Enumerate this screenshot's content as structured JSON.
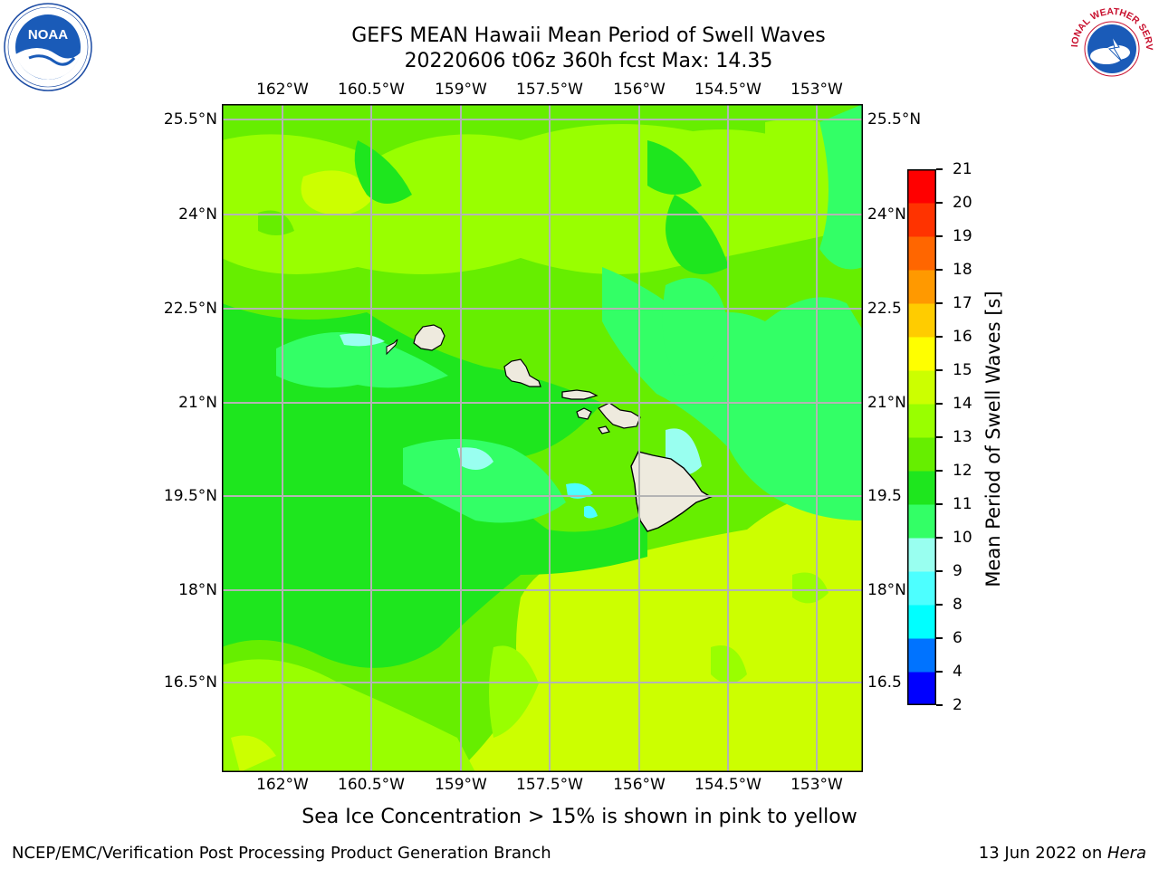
{
  "header": {
    "title_line1": "GEFS MEAN Hawaii Mean Period of Swell Waves",
    "title_line2": "20220606 t06z 360h fcst   Max: 14.35"
  },
  "logos": {
    "noaa": {
      "icon": "noaa-logo",
      "text": "NOAA"
    },
    "nws": {
      "icon": "nws-logo",
      "text": "NATIONAL WEATHER SERVICE"
    }
  },
  "map": {
    "longitude_labels": [
      "162°W",
      "160.5°W",
      "159°W",
      "157.5°W",
      "156°W",
      "154.5°W",
      "153°W"
    ],
    "latitude_labels": [
      "25.5°N",
      "24°N",
      "22.5°N",
      "21°N",
      "19.5°N",
      "18°N",
      "16.5°N"
    ],
    "latitude_labels_right": [
      "25.5°N",
      "24°N",
      "22.5",
      "21°N",
      "19.5",
      "18°N",
      "16.5"
    ],
    "lon_range": [
      -163,
      -152.2
    ],
    "lat_range": [
      15,
      25.8
    ],
    "islands": [
      "Kauai",
      "Niihau",
      "Oahu",
      "Molokai",
      "Maui",
      "Lanai",
      "Kahoolawe",
      "Hawaii"
    ],
    "colors": {
      "land": "#eeeade",
      "grid": "#b4b4b4"
    }
  },
  "colorbar": {
    "label": "Mean Period of Swell Waves [s]",
    "ticks": [
      "2",
      "4",
      "6",
      "8",
      "9",
      "10",
      "11",
      "12",
      "13",
      "14",
      "15",
      "16",
      "17",
      "18",
      "19",
      "20",
      "21"
    ],
    "colors": [
      "#0000ff",
      "#0073ff",
      "#00ffff",
      "#4dffff",
      "#99fff0",
      "#33ff66",
      "#1ee61e",
      "#66ee00",
      "#99ff00",
      "#ccff00",
      "#ffff00",
      "#ffcc00",
      "#ff9900",
      "#ff6600",
      "#ff3300",
      "#ff0000"
    ]
  },
  "footer": {
    "note": "Sea Ice Concentration > 15% is shown in pink to yellow",
    "credit_left": "NCEP/EMC/Verification Post Processing Product Generation Branch",
    "credit_date": "13 Jun 2022 on ",
    "credit_host": "Hera"
  }
}
